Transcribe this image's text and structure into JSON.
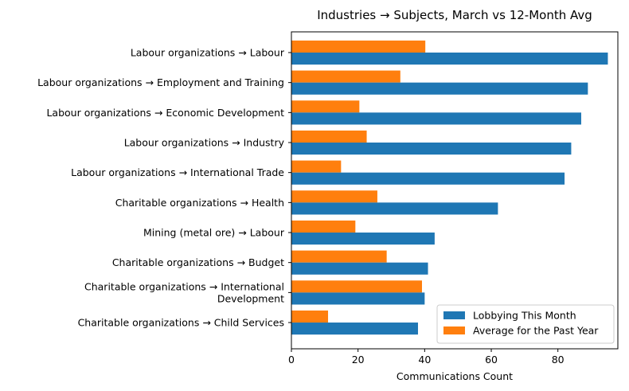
{
  "chart_data": {
    "type": "bar",
    "orientation": "horizontal",
    "title": "Industries → Subjects, March vs 12-Month Avg",
    "xlabel": "Communications Count",
    "ylabel": "",
    "xlim": [
      0,
      98
    ],
    "xticks": [
      0,
      20,
      40,
      60,
      80
    ],
    "categories": [
      [
        "Labour organizations → Labour"
      ],
      [
        "Labour organizations → Employment and Training"
      ],
      [
        "Labour organizations → Economic Development"
      ],
      [
        "Labour organizations → Industry"
      ],
      [
        "Labour organizations → International Trade"
      ],
      [
        "Charitable organizations → Health"
      ],
      [
        "Mining (metal ore) → Labour"
      ],
      [
        "Charitable organizations → Budget"
      ],
      [
        "Charitable organizations → International",
        "Development"
      ],
      [
        "Charitable organizations → Child Services"
      ]
    ],
    "series": [
      {
        "name": "Lobbying This Month",
        "color": "#1f77b4",
        "values": [
          95,
          89,
          87,
          84,
          82,
          62,
          43,
          41,
          40,
          38
        ]
      },
      {
        "name": "Average for the Past Year",
        "color": "#ff7f0e",
        "values": [
          40.2,
          32.7,
          20.4,
          22.6,
          14.9,
          25.8,
          19.2,
          28.6,
          39.2,
          11
        ]
      }
    ],
    "legend_position": "lower-right",
    "grid": false
  }
}
